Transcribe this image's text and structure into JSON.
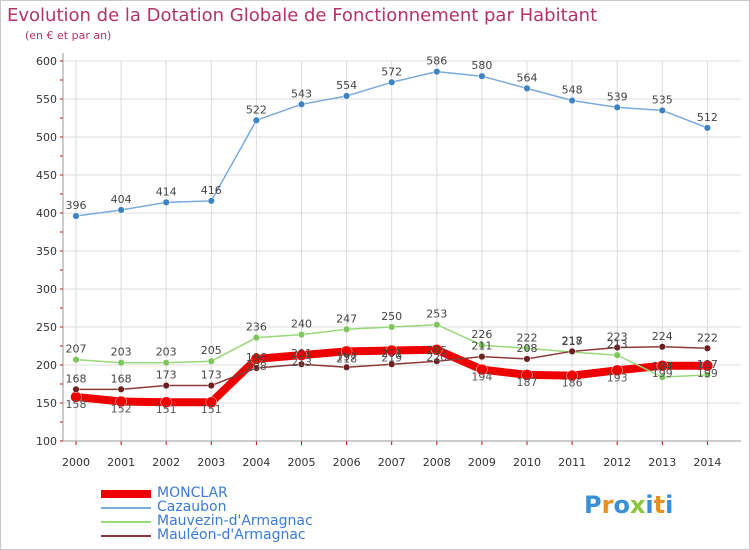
{
  "colors": {
    "title": "#b2336b",
    "axis_text": "#333333",
    "grid": "#dcdcdc",
    "axis_tick_red": "#cc0000",
    "legend_text": "#3a7bd5",
    "logo": [
      "#3b8fd6",
      "#e8911e",
      "#3b8fd6",
      "#8cc63f",
      "#3b8fd6",
      "#e8911e"
    ]
  },
  "logo_text": "Proxiti",
  "chart_data": {
    "type": "line",
    "title": "Evolution de la Dotation Globale de Fonctionnement par Habitant",
    "subtitle": "(en € et par an)",
    "xlabel": "",
    "ylabel": "",
    "ylim": [
      100,
      600
    ],
    "yticks": [
      100,
      150,
      200,
      250,
      300,
      350,
      400,
      450,
      500,
      550,
      600
    ],
    "grid": true,
    "legend_position": "bottom-left",
    "x": [
      "2000",
      "2001",
      "2002",
      "2003",
      "2004",
      "2005",
      "2006",
      "2007",
      "2008",
      "2009",
      "2010",
      "2011",
      "2012",
      "2013",
      "2014"
    ],
    "series": [
      {
        "name": "MONCLAR",
        "color": "#ee0000",
        "point_color": "#ee0000",
        "width": 8,
        "legend_width": 8,
        "label_color": "#555555",
        "label_offset": 11,
        "values": [
          158,
          152,
          151,
          151,
          208,
          213,
          218,
          219,
          220,
          194,
          187,
          186,
          193,
          199,
          199
        ]
      },
      {
        "name": "Cazaubon",
        "color": "#7aaadc",
        "point_color": "#3b83c4",
        "width": 1.5,
        "legend_width": 2,
        "label_color": "#444444",
        "label_offset": -7,
        "values": [
          396,
          404,
          414,
          416,
          522,
          543,
          554,
          572,
          586,
          580,
          564,
          548,
          539,
          535,
          512
        ]
      },
      {
        "name": "Mauvezin-d'Armagnac",
        "color": "#9ad77a",
        "point_color": "#7cc65c",
        "width": 1.5,
        "legend_width": 2,
        "label_color": "#444444",
        "label_offset": -7,
        "values": [
          207,
          203,
          203,
          205,
          236,
          240,
          247,
          250,
          253,
          226,
          222,
          217,
          213,
          184,
          187
        ]
      },
      {
        "name": "Mauléon-d'Armagnac",
        "color": "#8a3a3a",
        "point_color": "#6e1e1e",
        "width": 1.5,
        "legend_width": 2,
        "label_color": "#444444",
        "label_offset": -7,
        "values": [
          168,
          168,
          173,
          173,
          196,
          201,
          197,
          201,
          205,
          211,
          208,
          218,
          223,
          224,
          222
        ]
      }
    ]
  }
}
